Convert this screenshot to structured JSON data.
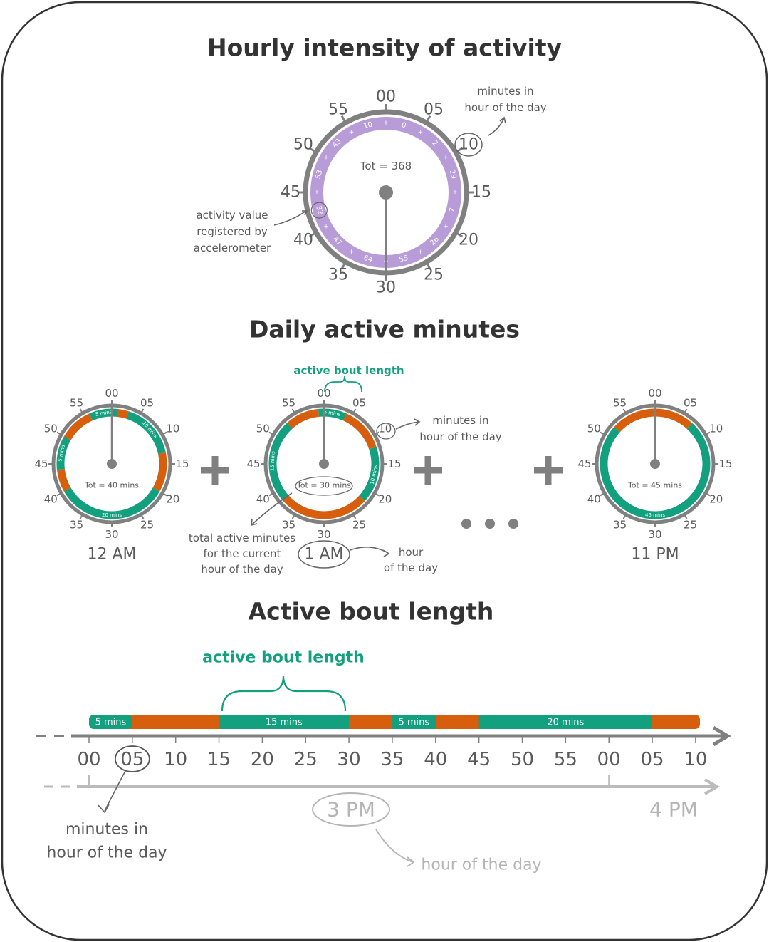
{
  "hourly": {
    "title": "Hourly intensity of activity",
    "minute_labels": [
      "00",
      "05",
      "10",
      "15",
      "20",
      "25",
      "30",
      "35",
      "40",
      "45",
      "50",
      "55"
    ],
    "activity_values": [
      0,
      2,
      29,
      7,
      26,
      55,
      64,
      47,
      32,
      53,
      43,
      10
    ],
    "total": "Tot = 368",
    "annotation_minutes": [
      "minutes in",
      "hour of the day"
    ],
    "annotation_activity": [
      "activity value",
      "registered by",
      "accelerometer"
    ]
  },
  "daily": {
    "title": "Daily active minutes",
    "clocks": [
      {
        "hour": "12 AM",
        "minute_labels": [
          "00",
          "05",
          "10",
          "15",
          "20",
          "25",
          "30",
          "35",
          "40",
          "45",
          "50",
          "55"
        ],
        "segment_labels": [
          "5 mins",
          "10 mins",
          "20 mins",
          "5 mins"
        ],
        "total": "Tot = 40 mins"
      },
      {
        "hour": "1 AM",
        "minute_labels": [
          "00",
          "05",
          "10",
          "15",
          "20",
          "25",
          "30",
          "35",
          "40",
          "45",
          "50",
          "55"
        ],
        "segment_labels": [
          "5 mins",
          "10 mins",
          "15 mins"
        ],
        "total": "Tot = 30 mins"
      },
      {
        "hour": "11 PM",
        "minute_labels": [
          "00",
          "05",
          "10",
          "15",
          "20",
          "25",
          "30",
          "35",
          "40",
          "45",
          "50",
          "55"
        ],
        "segment_labels": [
          "45 mins"
        ],
        "total": "Tot = 45 mins"
      }
    ],
    "annotation_bout": "active bout length",
    "annotation_minutes": [
      "minutes in",
      "hour of the day"
    ],
    "annotation_total": [
      "total active minutes",
      "for the current",
      "hour of the day"
    ],
    "annotation_hour": [
      "hour",
      "of the day"
    ]
  },
  "bout": {
    "title": "Active bout length",
    "annotation_bout": "active bout length",
    "segment_labels": [
      "5 mins",
      "15 mins",
      "5 mins",
      "20 mins"
    ],
    "minute_labels": [
      "00",
      "05",
      "10",
      "15",
      "20",
      "25",
      "30",
      "35",
      "40",
      "45",
      "50",
      "55",
      "00",
      "05",
      "10"
    ],
    "hour_labels": [
      "3 PM",
      "4 PM"
    ],
    "annotation_minutes": [
      "minutes in",
      "hour of the day"
    ],
    "annotation_hour": "hour of the day"
  }
}
